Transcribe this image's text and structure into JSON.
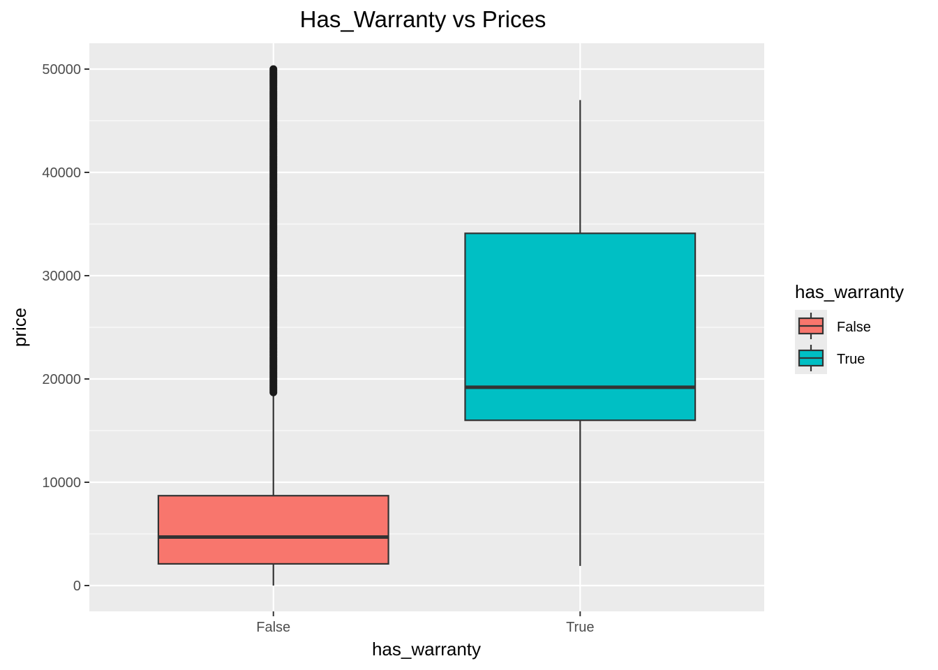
{
  "chart_data": {
    "type": "boxplot",
    "title": "Has_Warranty vs Prices",
    "xlabel": "has_warranty",
    "ylabel": "price",
    "categories": [
      "False",
      "True"
    ],
    "ylim": [
      -2500,
      52500
    ],
    "yticks": [
      0,
      10000,
      20000,
      30000,
      40000,
      50000
    ],
    "ytick_labels": [
      "0",
      "10000",
      "20000",
      "30000",
      "40000",
      "50000"
    ],
    "grid": true,
    "legend": {
      "title": "has_warranty",
      "placement": "right",
      "entries": [
        "False",
        "True"
      ]
    },
    "series": [
      {
        "category": "False",
        "fill": "#F8766D",
        "whisker_low": 0,
        "q1": 2100,
        "median": 4700,
        "q3": 8700,
        "whisker_high": 18700,
        "outliers_range": [
          18700,
          50000
        ]
      },
      {
        "category": "True",
        "fill": "#00BFC4",
        "whisker_low": 1900,
        "q1": 16000,
        "median": 19200,
        "q3": 34100,
        "whisker_high": 47000,
        "outliers_range": null
      }
    ]
  }
}
